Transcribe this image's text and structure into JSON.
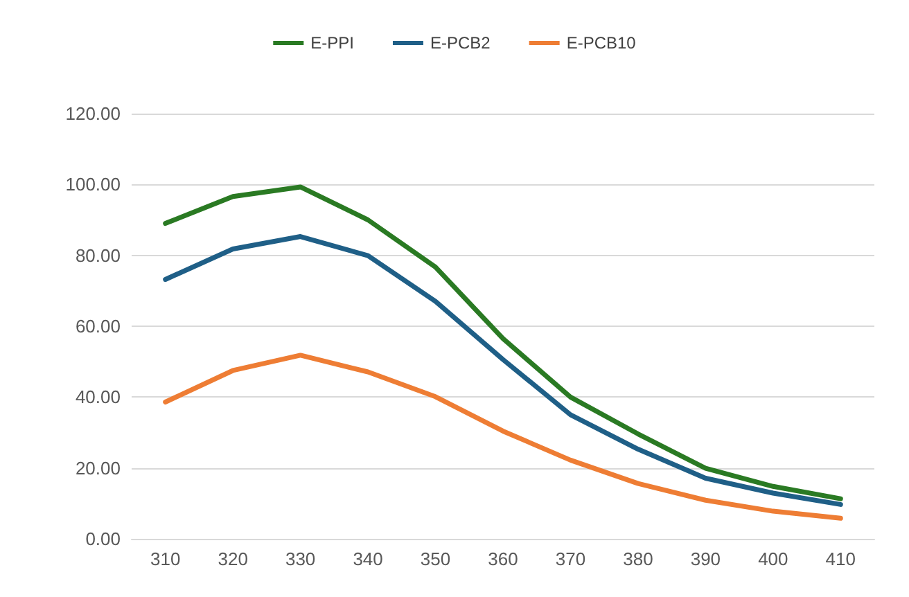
{
  "chart_data": {
    "type": "line",
    "categories": [
      "310",
      "320",
      "330",
      "340",
      "350",
      "360",
      "370",
      "380",
      "390",
      "400",
      "410"
    ],
    "series": [
      {
        "name": "E-PPI",
        "color": "#2a7a23",
        "values": [
          89,
          96.6,
          99.3,
          90,
          76.7,
          56.5,
          40,
          29.6,
          19.9,
          14.8,
          11.3
        ]
      },
      {
        "name": "E-PCB2",
        "color": "#1f5f87",
        "values": [
          73.2,
          81.8,
          85.3,
          79.9,
          67,
          50.6,
          35,
          25.3,
          17.1,
          12.9,
          9.7
        ]
      },
      {
        "name": "E-PCB10",
        "color": "#ee7d34",
        "values": [
          38.6,
          47.5,
          51.8,
          47.1,
          40.1,
          30.4,
          22.2,
          15.6,
          10.9,
          7.8,
          5.8
        ]
      }
    ],
    "ylim": [
      0,
      120
    ],
    "yticks": [
      {
        "value": 0,
        "label": "0.00"
      },
      {
        "value": 20,
        "label": "20.00"
      },
      {
        "value": 40,
        "label": "40.00"
      },
      {
        "value": 60,
        "label": "60.00"
      },
      {
        "value": 80,
        "label": "80.00"
      },
      {
        "value": 100,
        "label": "100.00"
      },
      {
        "value": 120,
        "label": "120.00"
      }
    ],
    "grid": "y",
    "legend": "top",
    "marker": "none",
    "line_style": "solid"
  }
}
